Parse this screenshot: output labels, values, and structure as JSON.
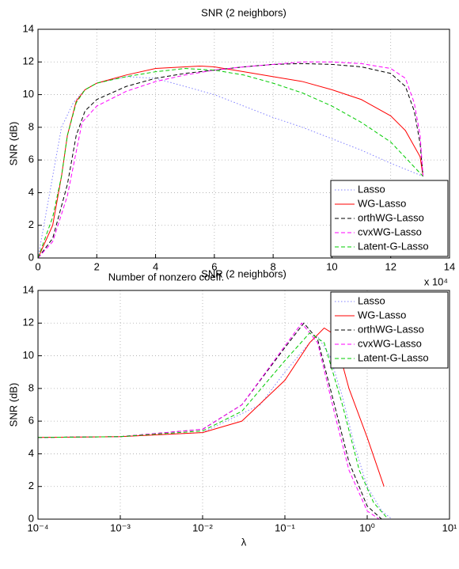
{
  "chart_data": [
    {
      "type": "line",
      "title": "SNR (2 neighbors)",
      "xlabel": "Number of nonzero coeff.",
      "ylabel": "SNR (dB)",
      "x_scale_label": "x 10⁴",
      "xlim": [
        0,
        14
      ],
      "ylim": [
        0,
        14
      ],
      "xticks": [
        0,
        2,
        4,
        6,
        8,
        10,
        12,
        14
      ],
      "yticks": [
        0,
        2,
        4,
        6,
        8,
        10,
        12,
        14
      ],
      "grid": true,
      "log_x": false,
      "legend_loc": "lower right",
      "series": [
        {
          "name": "Lasso",
          "color": "#8080ff",
          "dash": "dotted",
          "x": [
            0,
            0.5,
            0.8,
            1.2,
            1.6,
            2,
            3,
            4,
            5,
            6,
            7,
            8,
            9,
            10,
            11,
            12,
            13.1
          ],
          "values": [
            0,
            5,
            8,
            9.5,
            10.3,
            10.7,
            11.1,
            11,
            10.5,
            10,
            9.3,
            8.6,
            8,
            7.3,
            6.6,
            5.8,
            5
          ]
        },
        {
          "name": "WG-Lasso",
          "color": "#ff0000",
          "dash": "solid",
          "x": [
            0,
            0.5,
            0.8,
            1,
            1.3,
            1.6,
            2,
            3,
            4,
            5,
            5.5,
            6,
            7,
            8,
            9,
            10,
            11,
            12,
            12.5,
            13,
            13.1
          ],
          "values": [
            0,
            2,
            5,
            7.5,
            9.6,
            10.3,
            10.7,
            11.2,
            11.6,
            11.7,
            11.75,
            11.7,
            11.4,
            11.1,
            10.8,
            10.3,
            9.7,
            8.7,
            7.8,
            6.2,
            5
          ]
        },
        {
          "name": "orthWG-Lasso",
          "color": "#000000",
          "dash": "dashed",
          "x": [
            0,
            0.5,
            1,
            1.3,
            1.6,
            2,
            3,
            4,
            5,
            6,
            7,
            8,
            9,
            10,
            11,
            12,
            12.5,
            12.8,
            13,
            13.1
          ],
          "values": [
            0,
            1.2,
            4.5,
            7.5,
            9,
            9.7,
            10.5,
            11,
            11.3,
            11.5,
            11.7,
            11.85,
            11.9,
            11.85,
            11.7,
            11.3,
            10.5,
            9,
            7,
            5
          ]
        },
        {
          "name": "cvxWG-Lasso",
          "color": "#ff00ff",
          "dash": "dashed",
          "x": [
            0,
            0.5,
            1,
            1.3,
            1.5,
            2,
            3,
            4,
            5,
            6,
            7,
            8,
            9,
            10,
            11,
            12,
            12.5,
            12.8,
            13,
            13.1
          ],
          "values": [
            0,
            1,
            3.8,
            6.5,
            8.3,
            9.3,
            10.2,
            10.8,
            11.2,
            11.5,
            11.7,
            11.85,
            12,
            12,
            11.9,
            11.6,
            11,
            9.5,
            7.5,
            5
          ]
        },
        {
          "name": "Latent-G-Lasso",
          "color": "#00cc00",
          "dash": "dashed",
          "x": [
            0,
            0.5,
            0.8,
            1,
            1.3,
            1.6,
            2,
            3,
            4,
            5,
            6,
            7,
            8,
            9,
            10,
            11,
            12,
            13.1
          ],
          "values": [
            0,
            2.5,
            5,
            7.5,
            9.5,
            10.3,
            10.7,
            11.1,
            11.4,
            11.6,
            11.5,
            11.2,
            10.7,
            10.1,
            9.3,
            8.3,
            7.1,
            5
          ]
        }
      ]
    },
    {
      "type": "line",
      "title": "SNR (2 neighbors)",
      "xlabel": "λ",
      "ylabel": "SNR (dB)",
      "xlim": [
        0.0001,
        10
      ],
      "ylim": [
        0,
        14
      ],
      "xticks": [
        {
          "value": 0.0001,
          "label": "10⁻⁴"
        },
        {
          "value": 0.001,
          "label": "10⁻³"
        },
        {
          "value": 0.01,
          "label": "10⁻²"
        },
        {
          "value": 0.1,
          "label": "10⁻¹"
        },
        {
          "value": 1,
          "label": "10⁰"
        },
        {
          "value": 10,
          "label": "10¹"
        }
      ],
      "yticks": [
        0,
        2,
        4,
        6,
        8,
        10,
        12,
        14
      ],
      "grid": true,
      "log_x": true,
      "legend_loc": "upper right",
      "series": [
        {
          "name": "Lasso",
          "color": "#8080ff",
          "dash": "dotted",
          "x": [
            0.0001,
            0.001,
            0.01,
            0.05,
            0.1,
            0.2,
            0.25,
            0.35,
            0.5,
            0.7,
            1,
            1.5,
            2
          ],
          "values": [
            5,
            5.05,
            5.3,
            7,
            9,
            10.8,
            11.2,
            10,
            7.5,
            4.5,
            2,
            0.5,
            0
          ]
        },
        {
          "name": "WG-Lasso",
          "color": "#ff0000",
          "dash": "solid",
          "x": [
            0.0001,
            0.001,
            0.01,
            0.03,
            0.1,
            0.2,
            0.3,
            0.4,
            0.6,
            1,
            1.6
          ],
          "values": [
            5,
            5.05,
            5.3,
            6,
            8.5,
            10.8,
            11.7,
            11.3,
            8,
            5,
            2
          ]
        },
        {
          "name": "orthWG-Lasso",
          "color": "#000000",
          "dash": "dashed",
          "x": [
            0.0001,
            0.001,
            0.01,
            0.03,
            0.1,
            0.17,
            0.25,
            0.4,
            0.6,
            1,
            1.5
          ],
          "values": [
            5,
            5.05,
            5.5,
            7,
            10.5,
            12,
            11,
            7,
            3.5,
            0.8,
            0
          ]
        },
        {
          "name": "cvxWG-Lasso",
          "color": "#ff00ff",
          "dash": "dashed",
          "x": [
            0.0001,
            0.001,
            0.01,
            0.03,
            0.1,
            0.16,
            0.25,
            0.4,
            0.6,
            1,
            1.4
          ],
          "values": [
            5,
            5.05,
            5.5,
            7,
            10.6,
            12,
            10.8,
            6.5,
            3,
            0.5,
            0
          ]
        },
        {
          "name": "Latent-G-Lasso",
          "color": "#00cc00",
          "dash": "dashed",
          "x": [
            0.0001,
            0.001,
            0.01,
            0.03,
            0.1,
            0.2,
            0.3,
            0.5,
            0.8,
            1.2,
            1.8
          ],
          "values": [
            5,
            5.05,
            5.4,
            6.6,
            9.7,
            11.4,
            10.8,
            7,
            3,
            1,
            0
          ]
        }
      ]
    }
  ]
}
